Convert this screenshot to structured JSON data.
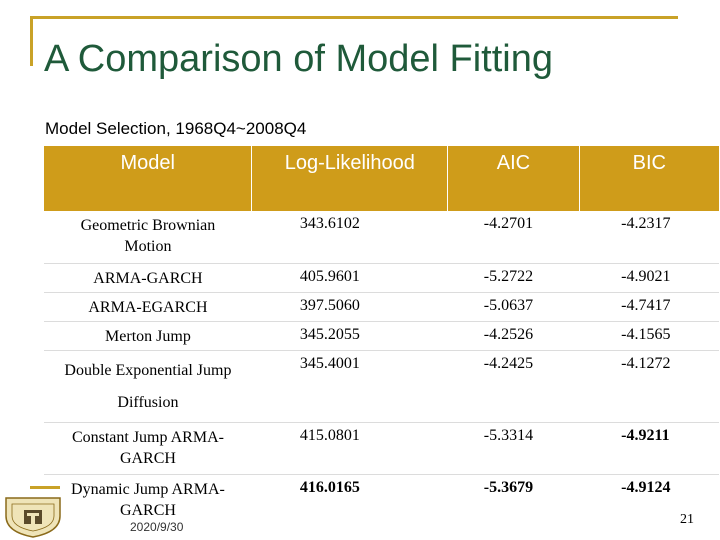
{
  "slide": {
    "title": "A Comparison of Model Fitting",
    "subtitle": "Model Selection, 1968Q4~2008Q4",
    "date": "2020/9/30",
    "page_number": "21"
  },
  "table": {
    "headers": [
      "Model",
      "Log-Likelihood",
      "AIC",
      "BIC"
    ],
    "rows": [
      {
        "model": [
          "Geometric Brownian",
          "Motion"
        ],
        "ll": "343.6102",
        "aic": "-4.2701",
        "bic": "-4.2317",
        "bold": [
          false,
          false,
          false
        ]
      },
      {
        "model": [
          "ARMA-GARCH"
        ],
        "ll": "405.9601",
        "aic": "-5.2722",
        "bic": "-4.9021",
        "bold": [
          false,
          false,
          false
        ]
      },
      {
        "model": [
          "ARMA-EGARCH"
        ],
        "ll": "397.5060",
        "aic": "-5.0637",
        "bic": "-4.7417",
        "bold": [
          false,
          false,
          false
        ]
      },
      {
        "model": [
          "Merton Jump"
        ],
        "ll": "345.2055",
        "aic": "-4.2526",
        "bic": "-4.1565",
        "bold": [
          false,
          false,
          false
        ]
      },
      {
        "model": [
          "Double Exponential Jump",
          "Diffusion"
        ],
        "ll": "345.4001",
        "aic": "-4.2425",
        "bic": "-4.1272",
        "bold": [
          false,
          false,
          false
        ]
      },
      {
        "model": [
          "Constant Jump ARMA-",
          "GARCH"
        ],
        "ll": "415.0801",
        "aic": "-5.3314",
        "bic": "-4.9211",
        "bold": [
          false,
          false,
          true
        ]
      },
      {
        "model": [
          "Dynamic Jump ARMA-",
          "GARCH"
        ],
        "ll": "416.0165",
        "aic": "-5.3679",
        "bic": "-4.9124",
        "bold": [
          true,
          true,
          true
        ]
      }
    ]
  },
  "colors": {
    "title": "#1f5a3a",
    "header_bg": "#cf9c1a",
    "frame": "#c9a227"
  },
  "logo": {
    "icon": "university-crest-icon"
  }
}
